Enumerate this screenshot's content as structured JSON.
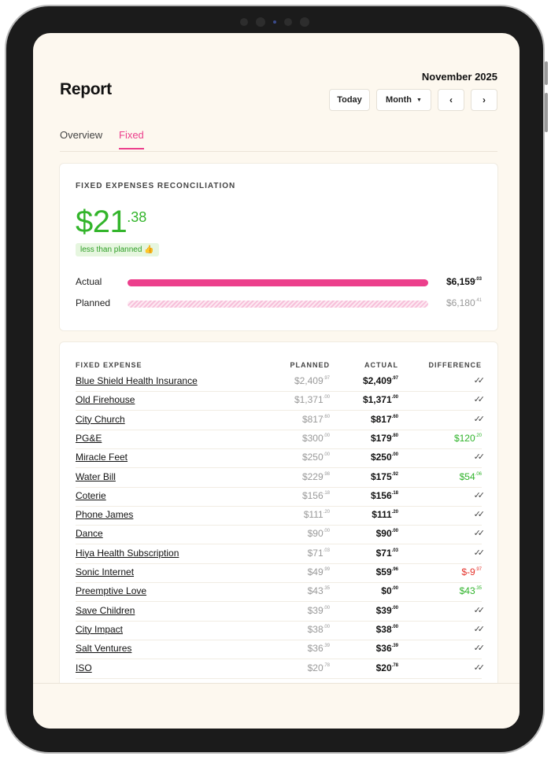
{
  "header": {
    "title": "Report",
    "period": "November 2025",
    "today_label": "Today",
    "view_label": "Month",
    "prev_symbol": "‹",
    "next_symbol": "›"
  },
  "tabs": [
    {
      "label": "Overview",
      "active": false
    },
    {
      "label": "Fixed",
      "active": true
    }
  ],
  "reconciliation": {
    "heading": "FIXED EXPENSES RECONCILIATION",
    "amount_dollars": "$21",
    "amount_cents": ".38",
    "status_label": "less than planned 👍",
    "actual_label": "Actual",
    "actual_value": "$6,159",
    "actual_cents": ".03",
    "actual_fraction": 1.0,
    "planned_label": "Planned",
    "planned_value": "$6,180",
    "planned_cents": ".41",
    "planned_fraction": 1.0
  },
  "table": {
    "col_name": "FIXED EXPENSE",
    "col_planned": "PLANNED",
    "col_actual": "ACTUAL",
    "col_difference": "DIFFERENCE",
    "rows": [
      {
        "name": "Blue Shield Health Insurance",
        "planned": "$2,409",
        "planned_c": ".97",
        "actual": "$2,409",
        "actual_c": ".97",
        "diff": "",
        "diff_c": "",
        "status": "check"
      },
      {
        "name": "Old Firehouse",
        "planned": "$1,371",
        "planned_c": ".00",
        "actual": "$1,371",
        "actual_c": ".00",
        "diff": "",
        "diff_c": "",
        "status": "check"
      },
      {
        "name": "City Church",
        "planned": "$817",
        "planned_c": ".60",
        "actual": "$817",
        "actual_c": ".60",
        "diff": "",
        "diff_c": "",
        "status": "check"
      },
      {
        "name": "PG&E",
        "planned": "$300",
        "planned_c": ".00",
        "actual": "$179",
        "actual_c": ".80",
        "diff": "$120",
        "diff_c": ".20",
        "status": "pos"
      },
      {
        "name": "Miracle Feet",
        "planned": "$250",
        "planned_c": ".00",
        "actual": "$250",
        "actual_c": ".00",
        "diff": "",
        "diff_c": "",
        "status": "check"
      },
      {
        "name": "Water Bill",
        "planned": "$229",
        "planned_c": ".98",
        "actual": "$175",
        "actual_c": ".92",
        "diff": "$54",
        "diff_c": ".06",
        "status": "pos"
      },
      {
        "name": "Coterie",
        "planned": "$156",
        "planned_c": ".18",
        "actual": "$156",
        "actual_c": ".18",
        "diff": "",
        "diff_c": "",
        "status": "check"
      },
      {
        "name": "Phone James",
        "planned": "$111",
        "planned_c": ".20",
        "actual": "$111",
        "actual_c": ".20",
        "diff": "",
        "diff_c": "",
        "status": "check"
      },
      {
        "name": "Dance",
        "planned": "$90",
        "planned_c": ".00",
        "actual": "$90",
        "actual_c": ".00",
        "diff": "",
        "diff_c": "",
        "status": "check"
      },
      {
        "name": "Hiya Health Subscription",
        "planned": "$71",
        "planned_c": ".03",
        "actual": "$71",
        "actual_c": ".03",
        "diff": "",
        "diff_c": "",
        "status": "check"
      },
      {
        "name": "Sonic Internet",
        "planned": "$49",
        "planned_c": ".99",
        "actual": "$59",
        "actual_c": ".96",
        "diff": "$-9",
        "diff_c": ".97",
        "status": "neg"
      },
      {
        "name": "Preemptive Love",
        "planned": "$43",
        "planned_c": ".35",
        "actual": "$0",
        "actual_c": ".00",
        "diff": "$43",
        "diff_c": ".35",
        "status": "pos"
      },
      {
        "name": "Save Children",
        "planned": "$39",
        "planned_c": ".00",
        "actual": "$39",
        "actual_c": ".00",
        "diff": "",
        "diff_c": "",
        "status": "check"
      },
      {
        "name": "City Impact",
        "planned": "$38",
        "planned_c": ".00",
        "actual": "$38",
        "actual_c": ".00",
        "diff": "",
        "diff_c": "",
        "status": "check"
      },
      {
        "name": "Salt Ventures",
        "planned": "$36",
        "planned_c": ".39",
        "actual": "$36",
        "actual_c": ".39",
        "diff": "",
        "diff_c": "",
        "status": "check"
      },
      {
        "name": "ISO",
        "planned": "$20",
        "planned_c": ".78",
        "actual": "$20",
        "actual_c": ".78",
        "diff": "",
        "diff_c": "",
        "status": "check"
      }
    ]
  },
  "icons": {
    "check": "double-check-icon"
  },
  "colors": {
    "accent": "#ec3f8c",
    "positive": "#33b52b",
    "negative": "#e4322b",
    "background": "#fdf8ef"
  }
}
